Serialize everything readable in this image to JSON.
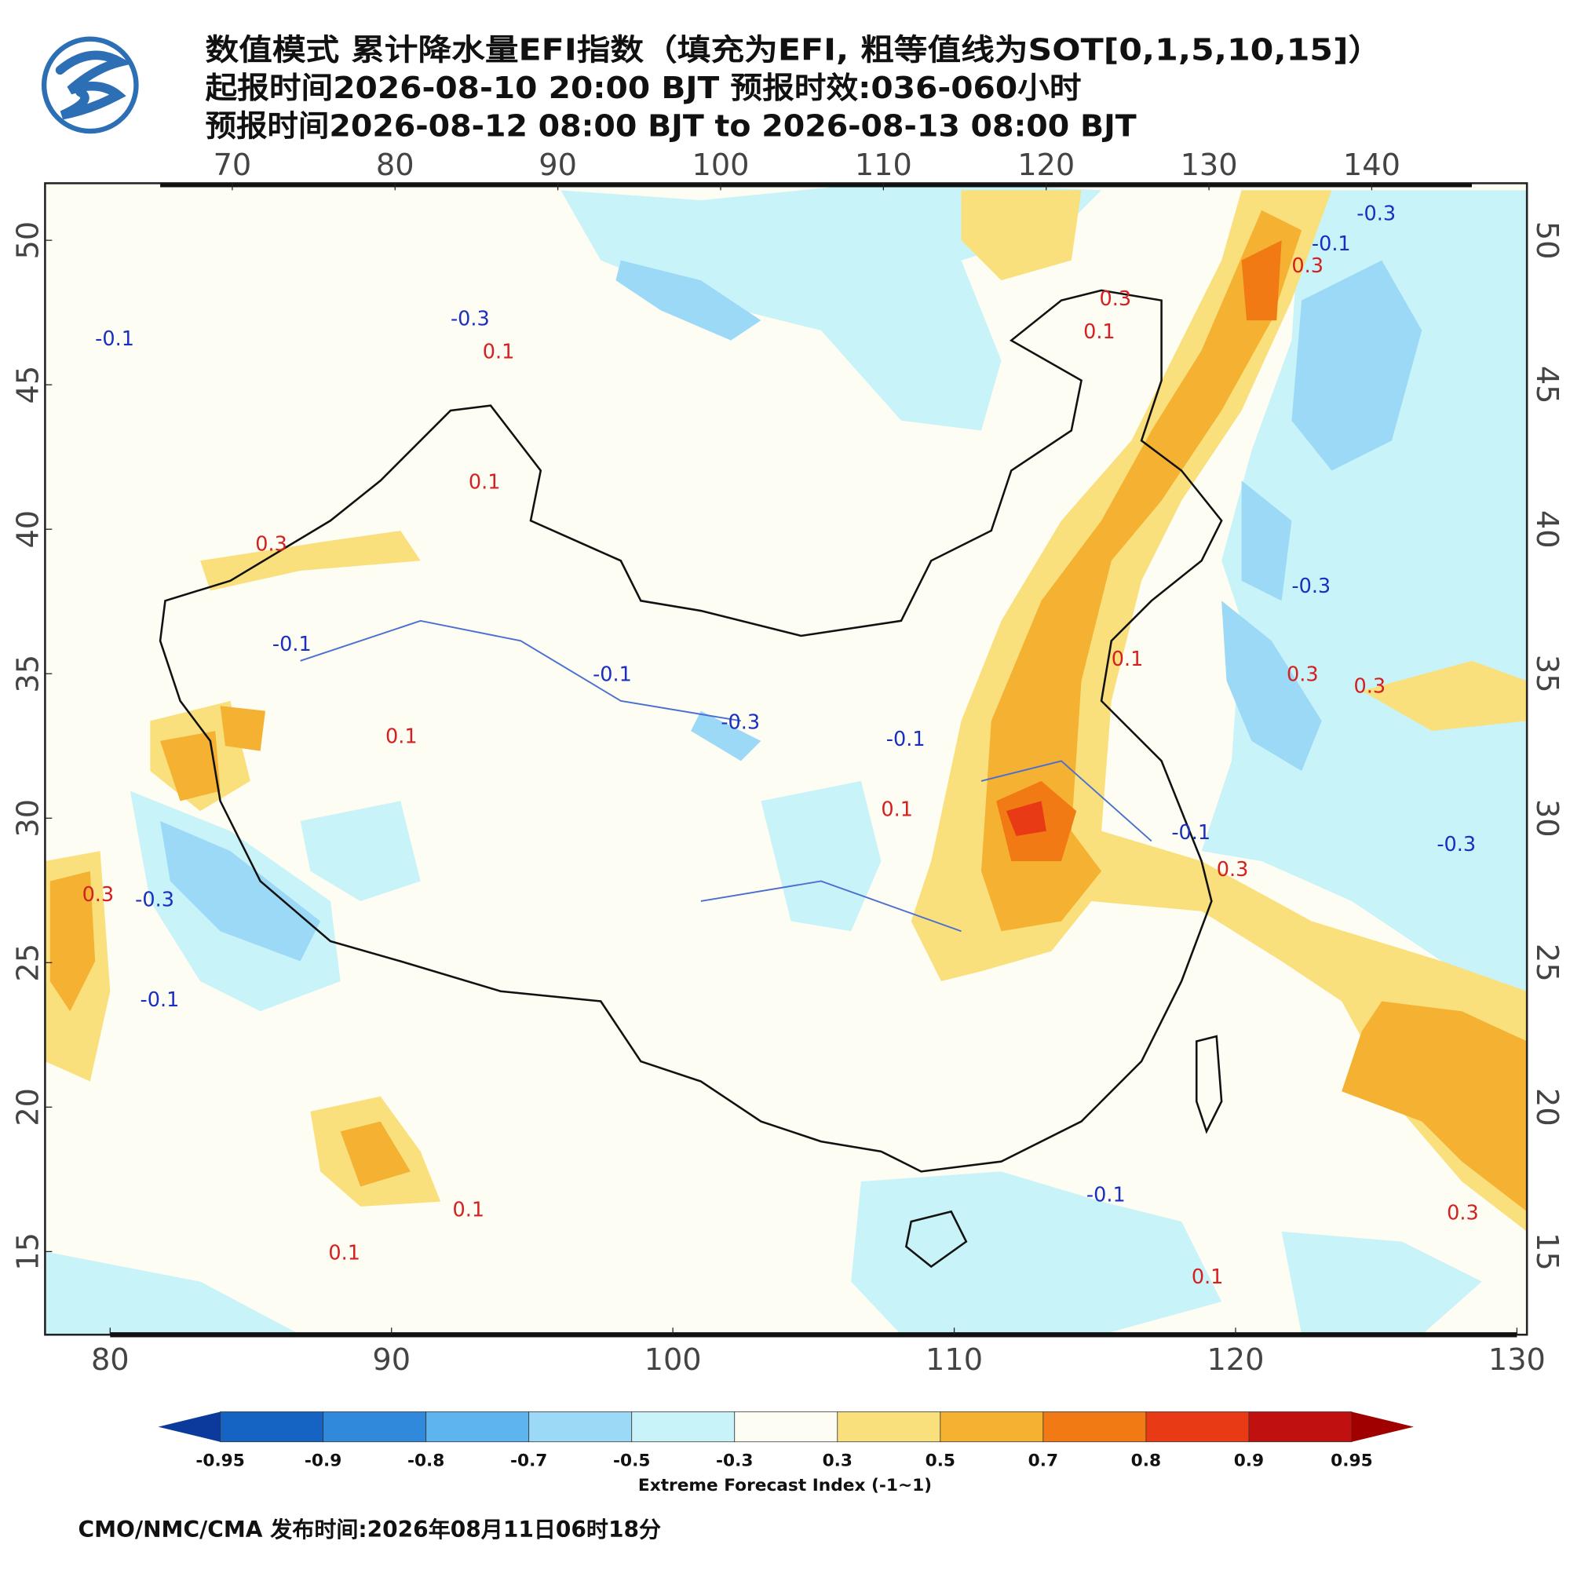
{
  "header": {
    "lines": [
      "数值模式 累计降水量EFI指数（填充为EFI, 粗等值线为SOT[0,1,5,10,15]）",
      "起报时间2026-08-10 20:00 BJT 预报时效:036-060小时",
      "预报时间2026-08-12 08:00 BJT to 2026-08-13 08:00 BJT"
    ]
  },
  "map": {
    "top_lon_ticks": [
      70,
      80,
      90,
      100,
      110,
      120,
      130,
      140
    ],
    "bottom_lon_ticks": [
      80,
      90,
      100,
      110,
      120,
      130
    ],
    "lat_ticks": [
      50,
      45,
      40,
      35,
      30,
      25,
      20,
      15
    ],
    "contour_labels": [
      "-0.1",
      "-0.3",
      "0.1",
      "0.1",
      "0.3",
      "-0.1",
      "0.3",
      "0.1",
      "0.3",
      "-0.1",
      "-0.3",
      "-0.3",
      "0.1",
      "0.3",
      "0.3",
      "-0.1",
      "-0.3",
      "-0.1",
      "0.1",
      "-0.1",
      "0.3",
      "-0.3",
      "0.3",
      "-0.3",
      "-0.1",
      "0.1",
      "0.1",
      "-0.1",
      "0.3",
      "0.1",
      "0.1"
    ]
  },
  "colorbar": {
    "ticks": [
      -0.95,
      -0.9,
      -0.8,
      -0.7,
      -0.5,
      -0.3,
      0.3,
      0.5,
      0.7,
      0.8,
      0.9,
      0.95
    ],
    "colors": [
      "#0b3a9c",
      "#1563c2",
      "#3189dc",
      "#5db4ef",
      "#9bd9f7",
      "#c8f3f8",
      "#fdfdf3",
      "#f9e07c",
      "#f4b132",
      "#f17a14",
      "#e83a14",
      "#c01010",
      "#a00000"
    ],
    "label": "Extreme Forecast Index (-1~1)"
  },
  "footer": "CMO/NMC/CMA 发布时间:2026年08月11日06时18分"
}
